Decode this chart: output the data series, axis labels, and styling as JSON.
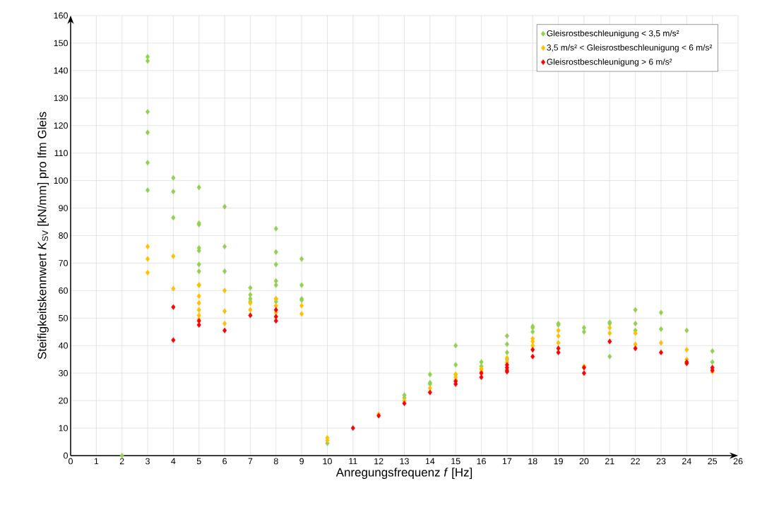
{
  "chart_data": {
    "type": "scatter",
    "xlabel": "Anregungsfrequenz *f* [Hz]",
    "ylabel": "Steifigkeitskennwert *K*$_{SV}$ [kN/mm] pro lfm Gleis",
    "xlim": [
      0,
      26
    ],
    "ylim": [
      0,
      160
    ],
    "xticks": [
      0,
      1,
      2,
      3,
      4,
      5,
      6,
      7,
      8,
      9,
      10,
      11,
      12,
      13,
      14,
      15,
      16,
      17,
      18,
      19,
      20,
      21,
      22,
      23,
      24,
      25,
      26
    ],
    "yticks": [
      0,
      10,
      20,
      30,
      40,
      50,
      60,
      70,
      80,
      90,
      100,
      110,
      120,
      130,
      140,
      150,
      160
    ],
    "grid": true,
    "legend": "top right",
    "marker": "diamond",
    "series": [
      {
        "name": "Gleisrostbeschleunigung < 3,5 m/s²",
        "color": "#92d050",
        "x": [
          2,
          3,
          3,
          3,
          3,
          3,
          3,
          4,
          4,
          4,
          5,
          5,
          5,
          5,
          5,
          5,
          5,
          5,
          6,
          6,
          6,
          7,
          7,
          7,
          7,
          8,
          8,
          8,
          8,
          8,
          8,
          8,
          9,
          9,
          9,
          9,
          10,
          13,
          13,
          14,
          14,
          14,
          15,
          15,
          15,
          16,
          16,
          16,
          17,
          17,
          17,
          17,
          18,
          18,
          18,
          19,
          19,
          20,
          20,
          21,
          21,
          21,
          22,
          22,
          22,
          23,
          23,
          24,
          25,
          25
        ],
        "values": [
          0,
          145,
          143.5,
          125,
          117.5,
          106.5,
          96.5,
          101,
          96,
          86.5,
          97.5,
          84.5,
          84,
          75.5,
          74.5,
          69.5,
          67,
          62,
          90.5,
          76,
          67,
          61,
          58.5,
          57,
          56,
          82.5,
          74,
          69.5,
          63.5,
          62,
          57,
          56,
          71.5,
          62,
          57,
          56.5,
          4.5,
          22,
          21,
          29.5,
          26.5,
          26,
          40,
          33,
          29.5,
          34,
          32.5,
          31.5,
          43.5,
          40.5,
          37.5,
          35,
          47,
          46.5,
          45,
          48,
          47.5,
          46.5,
          45,
          48.5,
          48,
          36,
          53,
          48,
          45.5,
          52,
          46,
          45.5,
          38,
          34
        ]
      },
      {
        "name": "3,5 m/s² < Gleisrostbeschleunigung < 6 m/s²",
        "color": "#ffc000",
        "x": [
          3,
          3,
          3,
          4,
          4,
          5,
          5,
          5,
          5,
          5,
          5,
          6,
          6,
          6,
          7,
          7,
          8,
          8,
          8,
          9,
          9,
          10,
          10,
          12,
          13,
          14,
          15,
          15,
          15,
          16,
          16,
          17,
          17,
          18,
          18,
          18,
          19,
          19,
          19,
          20,
          21,
          21,
          22,
          22,
          23,
          24,
          24,
          25
        ],
        "values": [
          76,
          71.5,
          66.5,
          72.5,
          60.7,
          62,
          58,
          55.5,
          53,
          51,
          49.5,
          60,
          52.5,
          48,
          55.5,
          53,
          57,
          54.5,
          52,
          54.5,
          51.5,
          6.5,
          5.5,
          15,
          20,
          24.5,
          29.5,
          28.5,
          27.5,
          31.5,
          30.5,
          35.5,
          34,
          42.5,
          41.5,
          40,
          45.5,
          43.5,
          41,
          32.5,
          46.5,
          44.5,
          44.5,
          40.5,
          41,
          38.5,
          35,
          30.5
        ]
      },
      {
        "name": "Gleisrostbeschleunigung > 6 m/s²",
        "color": "#ff0000",
        "x": [
          4,
          4,
          5,
          5,
          6,
          7,
          8,
          8,
          8,
          11,
          12,
          13,
          14,
          15,
          15,
          16,
          16,
          17,
          17,
          17,
          17,
          18,
          18,
          19,
          19,
          20,
          20,
          21,
          22,
          23,
          24,
          24,
          25,
          25
        ],
        "values": [
          54,
          42,
          49,
          47.5,
          45.5,
          51,
          53,
          50.5,
          49,
          10,
          14.5,
          19,
          23,
          27,
          26,
          30,
          28.5,
          33,
          32,
          31,
          30.5,
          38.5,
          36,
          39,
          37.5,
          32,
          30,
          41.5,
          39,
          37.5,
          34,
          33.5,
          32,
          31
        ]
      }
    ]
  }
}
